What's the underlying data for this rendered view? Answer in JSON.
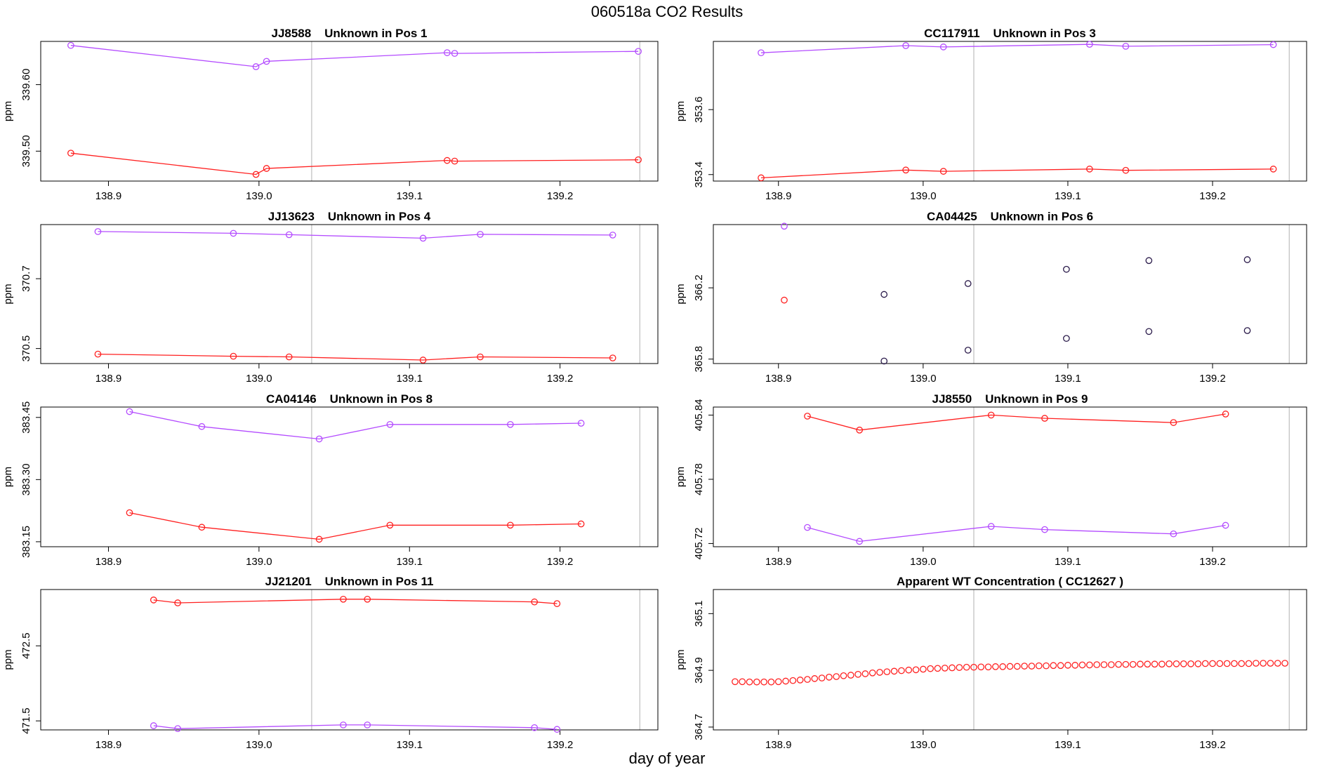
{
  "figure": {
    "title": "060518a  CO2 Results",
    "xlabel": "day of year"
  },
  "colors": {
    "red": "#ff2020",
    "purple": "#b44cff",
    "dark": "#2a1a4a",
    "vline": "#bdbdbd"
  },
  "chart_data": [
    {
      "type": "line",
      "title": "JJ8588    Unknown in Pos 1",
      "ylabel": "ppm",
      "xlim": [
        138.855,
        139.265
      ],
      "ylim": [
        339.455,
        339.665
      ],
      "xticks": [
        "138.9",
        "139.0",
        "139.1",
        "139.2"
      ],
      "yticks": [
        "339.50",
        "339.60"
      ],
      "vlines": [
        139.035,
        139.253
      ],
      "series": [
        {
          "color": "red",
          "points": [
            [
              138.875,
              339.497
            ],
            [
              138.998,
              339.465
            ],
            [
              139.005,
              339.474
            ],
            [
              139.125,
              339.486
            ],
            [
              139.13,
              339.485
            ],
            [
              139.252,
              339.487
            ]
          ]
        },
        {
          "color": "purple",
          "points": [
            [
              138.875,
              339.659
            ],
            [
              138.998,
              339.627
            ],
            [
              139.005,
              339.635
            ],
            [
              139.125,
              339.648
            ],
            [
              139.13,
              339.647
            ],
            [
              139.252,
              339.65
            ]
          ]
        }
      ]
    },
    {
      "type": "line",
      "title": "CC117911    Unknown in Pos 3",
      "ylabel": "ppm",
      "xlim": [
        138.855,
        139.265
      ],
      "ylim": [
        353.38,
        353.81
      ],
      "xticks": [
        "138.9",
        "139.0",
        "139.1",
        "139.2"
      ],
      "yticks": [
        "353.4",
        "353.6"
      ],
      "vlines": [
        139.035,
        139.253
      ],
      "series": [
        {
          "color": "red",
          "points": [
            [
              138.888,
              353.39
            ],
            [
              138.988,
              353.414
            ],
            [
              139.014,
              353.41
            ],
            [
              139.115,
              353.417
            ],
            [
              139.14,
              353.413
            ],
            [
              139.242,
              353.417
            ]
          ]
        },
        {
          "color": "purple",
          "points": [
            [
              138.888,
              353.775
            ],
            [
              138.988,
              353.797
            ],
            [
              139.014,
              353.793
            ],
            [
              139.115,
              353.801
            ],
            [
              139.14,
              353.795
            ],
            [
              139.242,
              353.8
            ]
          ]
        }
      ]
    },
    {
      "type": "line",
      "title": "JJ13623    Unknown in Pos 4",
      "ylabel": "ppm",
      "xlim": [
        138.855,
        139.265
      ],
      "ylim": [
        370.457,
        370.855
      ],
      "xticks": [
        "138.9",
        "139.0",
        "139.1",
        "139.2"
      ],
      "yticks": [
        "370.5",
        "370.7"
      ],
      "vlines": [
        139.035,
        139.253
      ],
      "series": [
        {
          "color": "red",
          "points": [
            [
              138.893,
              370.484
            ],
            [
              138.983,
              370.478
            ],
            [
              139.02,
              370.476
            ],
            [
              139.109,
              370.467
            ],
            [
              139.147,
              370.476
            ],
            [
              139.235,
              370.473
            ]
          ]
        },
        {
          "color": "purple",
          "points": [
            [
              138.893,
              370.835
            ],
            [
              138.983,
              370.83
            ],
            [
              139.02,
              370.826
            ],
            [
              139.109,
              370.816
            ],
            [
              139.147,
              370.827
            ],
            [
              139.235,
              370.825
            ]
          ]
        }
      ]
    },
    {
      "type": "scatter",
      "title": "CA04425    Unknown in Pos 6",
      "ylabel": "ppm",
      "xlim": [
        138.855,
        139.265
      ],
      "ylim": [
        365.775,
        366.555
      ],
      "xticks": [
        "138.9",
        "139.0",
        "139.1",
        "139.2"
      ],
      "yticks": [
        "365.8",
        "366.2"
      ],
      "vlines": [
        139.035,
        139.253
      ],
      "series": [
        {
          "color": "red",
          "points": [
            [
              138.904,
              366.131
            ]
          ]
        },
        {
          "color": "purple",
          "points": [
            [
              138.904,
              366.546
            ]
          ]
        },
        {
          "color": "dark",
          "points": [
            [
              138.973,
              365.789
            ],
            [
              139.031,
              365.85
            ],
            [
              139.099,
              365.916
            ],
            [
              139.156,
              365.955
            ],
            [
              139.224,
              365.96
            ]
          ]
        },
        {
          "color": "dark",
          "points": [
            [
              138.973,
              366.163
            ],
            [
              139.031,
              366.224
            ],
            [
              139.099,
              366.304
            ],
            [
              139.156,
              366.353
            ],
            [
              139.224,
              366.358
            ]
          ]
        }
      ]
    },
    {
      "type": "line",
      "title": "CA04146    Unknown in Pos 8",
      "ylabel": "ppm",
      "xlim": [
        138.855,
        139.265
      ],
      "ylim": [
        383.138,
        383.475
      ],
      "xticks": [
        "138.9",
        "139.0",
        "139.1",
        "139.2"
      ],
      "yticks": [
        "383.15",
        "383.30",
        "383.45"
      ],
      "vlines": [
        139.035,
        139.253
      ],
      "series": [
        {
          "color": "red",
          "points": [
            [
              138.914,
              383.22
            ],
            [
              138.962,
              383.185
            ],
            [
              139.04,
              383.156
            ],
            [
              139.087,
              383.19
            ],
            [
              139.167,
              383.19
            ],
            [
              139.214,
              383.193
            ]
          ]
        },
        {
          "color": "purple",
          "points": [
            [
              138.914,
              383.464
            ],
            [
              138.962,
              383.428
            ],
            [
              139.04,
              383.398
            ],
            [
              139.087,
              383.433
            ],
            [
              139.167,
              383.433
            ],
            [
              139.214,
              383.436
            ]
          ]
        }
      ]
    },
    {
      "type": "line",
      "title": "JJ8550    Unknown in Pos 9",
      "ylabel": "ppm",
      "xlim": [
        138.855,
        139.265
      ],
      "ylim": [
        405.717,
        405.8475
      ],
      "xticks": [
        "138.9",
        "139.0",
        "139.1",
        "139.2"
      ],
      "yticks": [
        "405.72",
        "405.78",
        "405.84"
      ],
      "vlines": [
        139.035,
        139.253
      ],
      "series": [
        {
          "color": "red",
          "points": [
            [
              138.92,
              405.839
            ],
            [
              138.956,
              405.826
            ],
            [
              139.047,
              405.84
            ],
            [
              139.084,
              405.837
            ],
            [
              139.173,
              405.833
            ],
            [
              139.209,
              405.841
            ]
          ]
        },
        {
          "color": "purple",
          "points": [
            [
              138.92,
              405.735
            ],
            [
              138.956,
              405.722
            ],
            [
              139.047,
              405.736
            ],
            [
              139.084,
              405.733
            ],
            [
              139.173,
              405.729
            ],
            [
              139.209,
              405.737
            ]
          ]
        }
      ]
    },
    {
      "type": "line",
      "title": "JJ21201    Unknown in Pos 11",
      "ylabel": "ppm",
      "xlim": [
        138.855,
        139.265
      ],
      "ylim": [
        471.38,
        473.25
      ],
      "xticks": [
        "138.9",
        "139.0",
        "139.1",
        "139.2"
      ],
      "yticks": [
        "471.5",
        "472.5"
      ],
      "vlines": [
        139.035,
        139.253
      ],
      "series": [
        {
          "color": "red",
          "points": [
            [
              138.93,
              473.111
            ],
            [
              138.946,
              473.072
            ],
            [
              139.056,
              473.121
            ],
            [
              139.072,
              473.121
            ],
            [
              139.183,
              473.085
            ],
            [
              139.198,
              473.062
            ]
          ]
        },
        {
          "color": "purple",
          "points": [
            [
              138.93,
              471.436
            ],
            [
              138.946,
              471.397
            ],
            [
              139.056,
              471.446
            ],
            [
              139.072,
              471.446
            ],
            [
              139.183,
              471.41
            ],
            [
              139.198,
              471.387
            ]
          ]
        }
      ]
    },
    {
      "type": "scatter",
      "title": "Apparent WT Concentration ( CC12627 )",
      "ylabel": "ppm",
      "xlim": [
        138.855,
        139.265
      ],
      "ylim": [
        364.69,
        365.185
      ],
      "xticks": [
        "138.9",
        "139.0",
        "139.1",
        "139.2"
      ],
      "yticks": [
        "364.7",
        "364.9",
        "365.1"
      ],
      "vlines": [
        139.035,
        139.253
      ],
      "series": [
        {
          "color": "red",
          "points": [
            [
              138.87,
              364.86
            ],
            [
              138.875,
              364.86
            ],
            [
              138.88,
              364.859
            ],
            [
              138.885,
              364.859
            ],
            [
              138.89,
              364.859
            ],
            [
              138.895,
              364.859
            ],
            [
              138.9,
              364.86
            ],
            [
              138.905,
              364.862
            ],
            [
              138.91,
              364.864
            ],
            [
              138.915,
              364.866
            ],
            [
              138.92,
              364.868
            ],
            [
              138.925,
              364.871
            ],
            [
              138.93,
              364.873
            ],
            [
              138.935,
              364.876
            ],
            [
              138.94,
              364.878
            ],
            [
              138.945,
              364.881
            ],
            [
              138.95,
              364.883
            ],
            [
              138.955,
              364.886
            ],
            [
              138.96,
              364.888
            ],
            [
              138.965,
              364.891
            ],
            [
              138.97,
              364.893
            ],
            [
              138.975,
              364.895
            ],
            [
              138.98,
              364.897
            ],
            [
              138.985,
              364.899
            ],
            [
              138.99,
              364.901
            ],
            [
              138.995,
              364.902
            ],
            [
              139.0,
              364.904
            ],
            [
              139.005,
              364.906
            ],
            [
              139.01,
              364.907
            ],
            [
              139.015,
              364.908
            ],
            [
              139.02,
              364.909
            ],
            [
              139.025,
              364.91
            ],
            [
              139.03,
              364.911
            ],
            [
              139.035,
              364.911
            ],
            [
              139.04,
              364.912
            ],
            [
              139.045,
              364.912
            ],
            [
              139.05,
              364.913
            ],
            [
              139.055,
              364.913
            ],
            [
              139.06,
              364.914
            ],
            [
              139.065,
              364.914
            ],
            [
              139.07,
              364.915
            ],
            [
              139.075,
              364.915
            ],
            [
              139.08,
              364.916
            ],
            [
              139.085,
              364.916
            ],
            [
              139.09,
              364.917
            ],
            [
              139.095,
              364.917
            ],
            [
              139.1,
              364.918
            ],
            [
              139.105,
              364.918
            ],
            [
              139.11,
              364.919
            ],
            [
              139.115,
              364.919
            ],
            [
              139.12,
              364.92
            ],
            [
              139.125,
              364.92
            ],
            [
              139.13,
              364.92
            ],
            [
              139.135,
              364.921
            ],
            [
              139.14,
              364.921
            ],
            [
              139.145,
              364.921
            ],
            [
              139.15,
              364.922
            ],
            [
              139.155,
              364.922
            ],
            [
              139.16,
              364.922
            ],
            [
              139.165,
              364.922
            ],
            [
              139.17,
              364.923
            ],
            [
              139.175,
              364.923
            ],
            [
              139.18,
              364.923
            ],
            [
              139.185,
              364.923
            ],
            [
              139.19,
              364.923
            ],
            [
              139.195,
              364.924
            ],
            [
              139.2,
              364.924
            ],
            [
              139.205,
              364.924
            ],
            [
              139.21,
              364.924
            ],
            [
              139.215,
              364.924
            ],
            [
              139.22,
              364.924
            ],
            [
              139.225,
              364.924
            ],
            [
              139.23,
              364.925
            ],
            [
              139.235,
              364.925
            ],
            [
              139.24,
              364.925
            ],
            [
              139.245,
              364.925
            ],
            [
              139.25,
              364.925
            ]
          ]
        }
      ]
    }
  ]
}
